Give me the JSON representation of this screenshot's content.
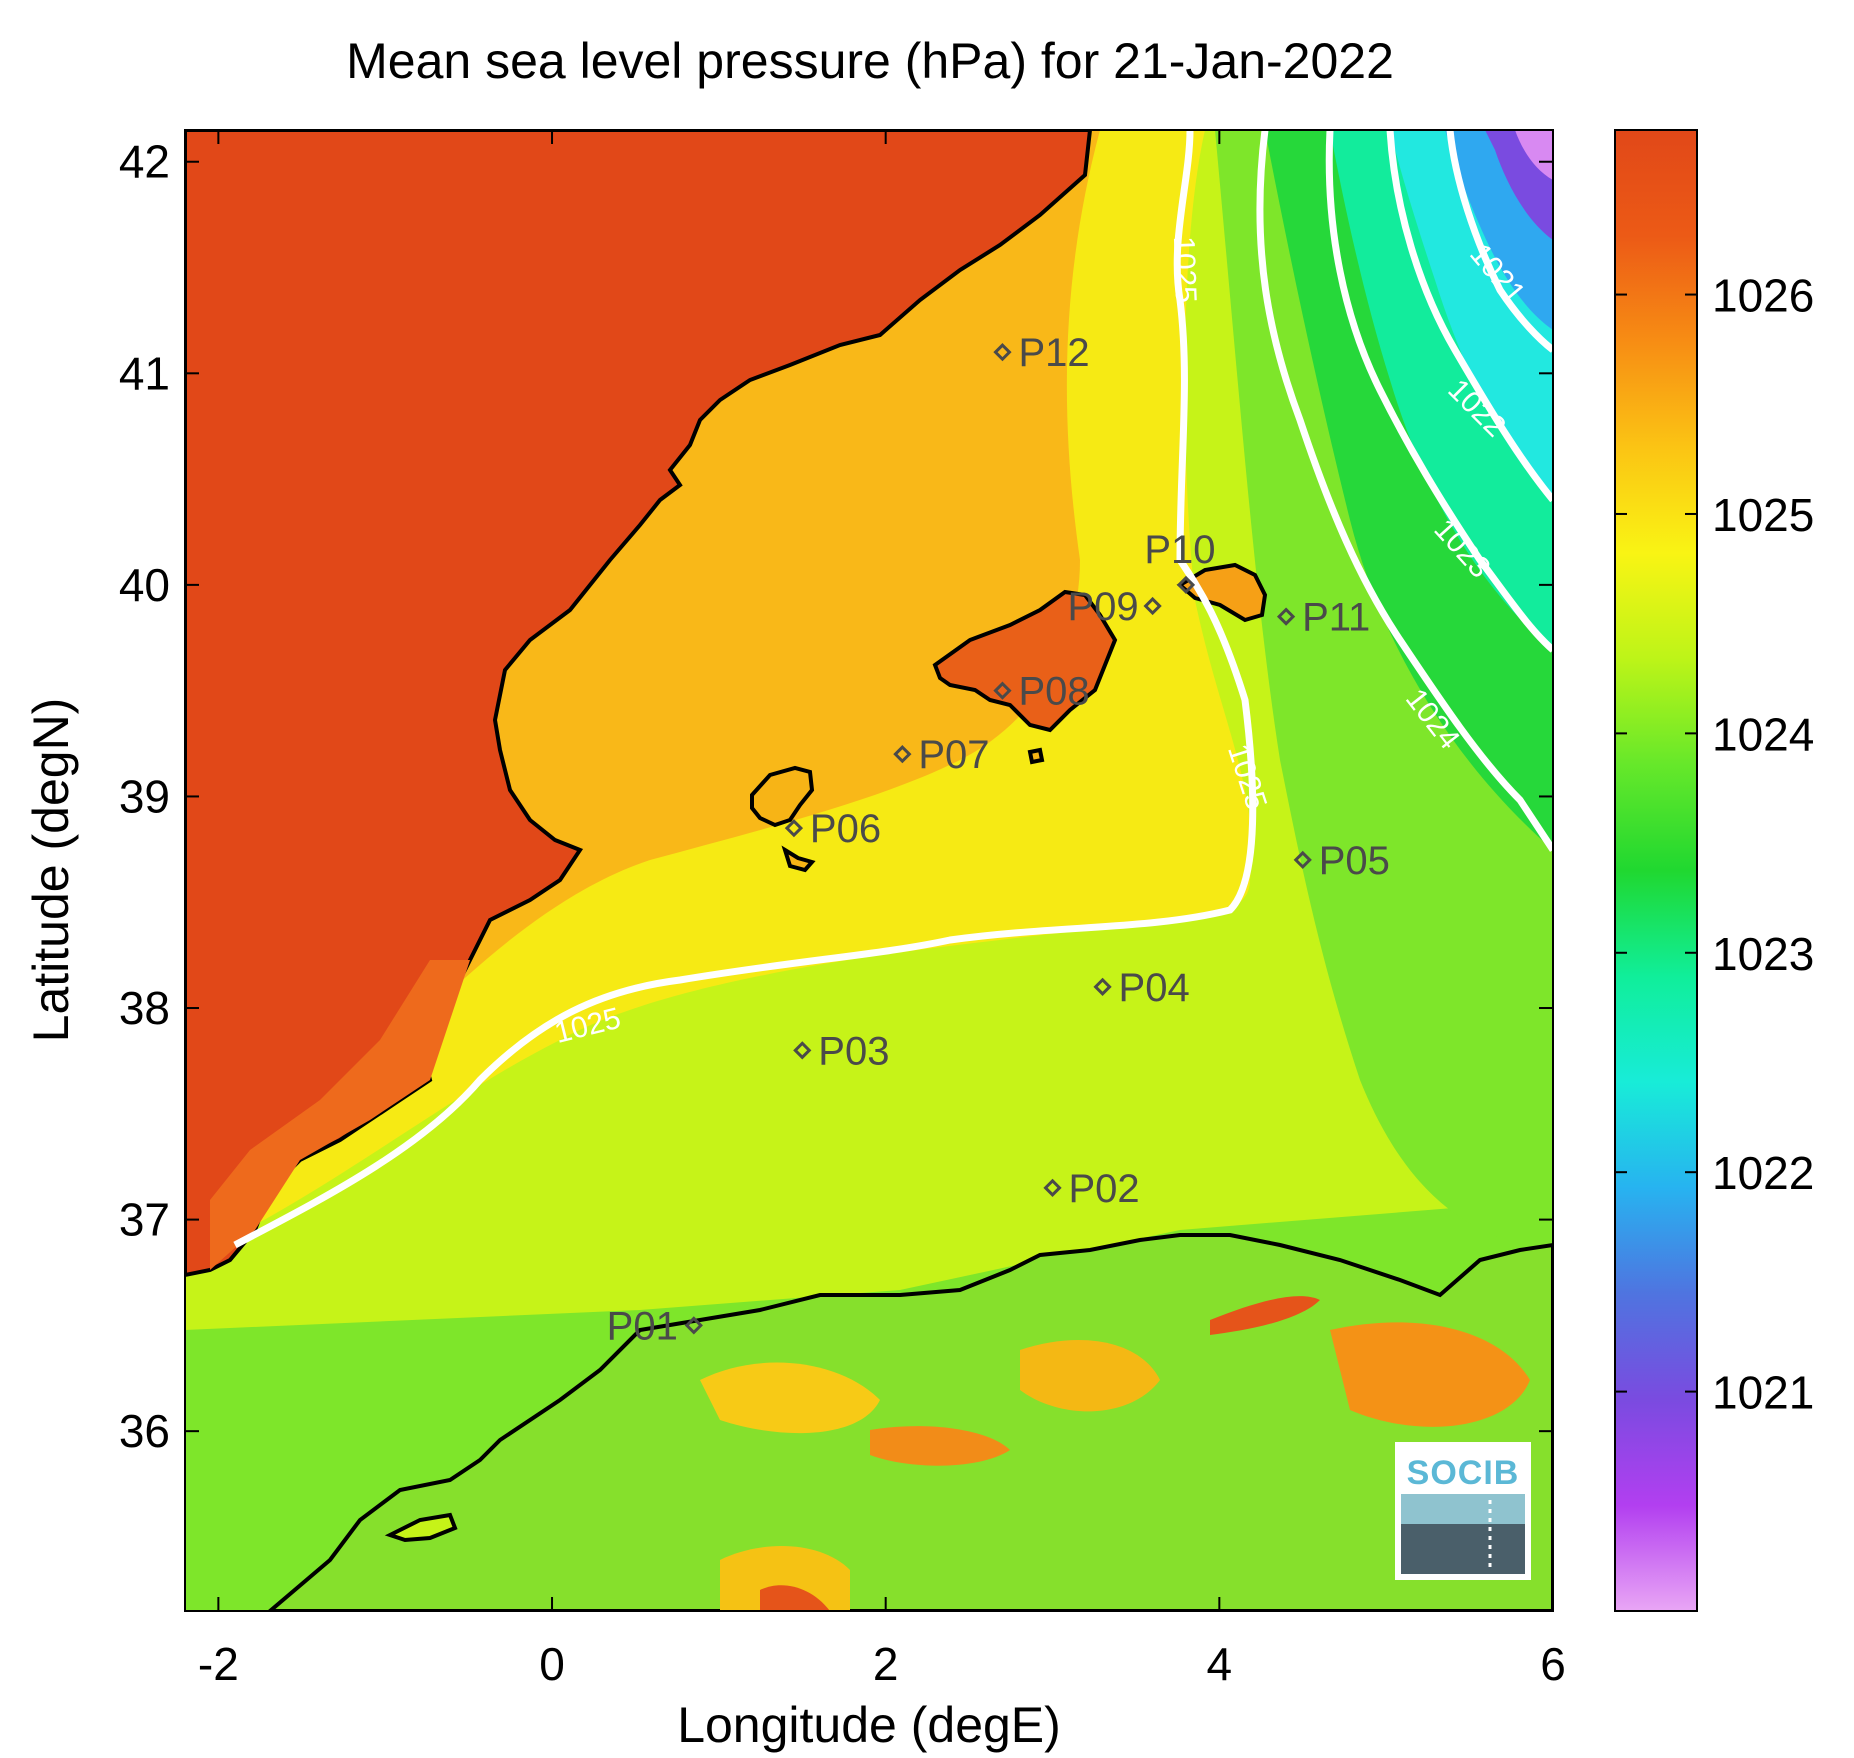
{
  "title": "Mean sea level pressure (hPa) for 21-Jan-2022",
  "x_axis": {
    "label": "Longitude (degE)",
    "range": [
      -2.2,
      6.0
    ],
    "ticks": [
      -2,
      0,
      2,
      4,
      6
    ],
    "tick_labels": [
      "-2",
      "0",
      "2",
      "4",
      "6"
    ]
  },
  "y_axis": {
    "label": "Latitude (degN)",
    "range": [
      35.15,
      42.15
    ],
    "ticks": [
      36,
      37,
      38,
      39,
      40,
      41,
      42
    ],
    "tick_labels": [
      "36",
      "37",
      "38",
      "39",
      "40",
      "41",
      "42"
    ]
  },
  "colorbar": {
    "range": [
      1020.0,
      1026.75
    ],
    "ticks": [
      1021,
      1022,
      1023,
      1024,
      1025,
      1026
    ],
    "tick_labels": [
      "1021",
      "1022",
      "1023",
      "1024",
      "1025",
      "1026"
    ],
    "colors": [
      "#e9a6f5",
      "#b23ff0",
      "#7a4be0",
      "#4f74e0",
      "#27b3f0",
      "#18ecd8",
      "#10ee9a",
      "#20d830",
      "#66e82a",
      "#bdf418",
      "#f9f414",
      "#fbc414",
      "#f78d14",
      "#ec5a16",
      "#e14818"
    ]
  },
  "contours": [
    {
      "level": 1025,
      "label": "1025"
    },
    {
      "level": 1024,
      "label": "1024"
    },
    {
      "level": 1023,
      "label": "1023"
    },
    {
      "level": 1022,
      "label": "1022"
    },
    {
      "level": 1021,
      "label": "1021"
    }
  ],
  "stations": [
    {
      "id": "P01",
      "lon": 0.85,
      "lat": 36.5
    },
    {
      "id": "P02",
      "lon": 3.0,
      "lat": 37.15
    },
    {
      "id": "P03",
      "lon": 1.5,
      "lat": 37.8
    },
    {
      "id": "P04",
      "lon": 3.3,
      "lat": 38.1
    },
    {
      "id": "P05",
      "lon": 4.5,
      "lat": 38.7
    },
    {
      "id": "P06",
      "lon": 1.45,
      "lat": 38.85
    },
    {
      "id": "P07",
      "lon": 2.1,
      "lat": 39.2
    },
    {
      "id": "P08",
      "lon": 2.7,
      "lat": 39.5
    },
    {
      "id": "P09",
      "lon": 3.6,
      "lat": 39.9
    },
    {
      "id": "P10",
      "lon": 3.8,
      "lat": 40.0
    },
    {
      "id": "P11",
      "lon": 4.4,
      "lat": 39.85
    },
    {
      "id": "P12",
      "lon": 2.7,
      "lat": 41.1
    }
  ],
  "logo": {
    "text": "SOCIB"
  },
  "colors": {
    "land_high": "#e14818",
    "coastline": "#000000",
    "contour": "#ffffff",
    "station_marker": "#4a4a4a"
  }
}
